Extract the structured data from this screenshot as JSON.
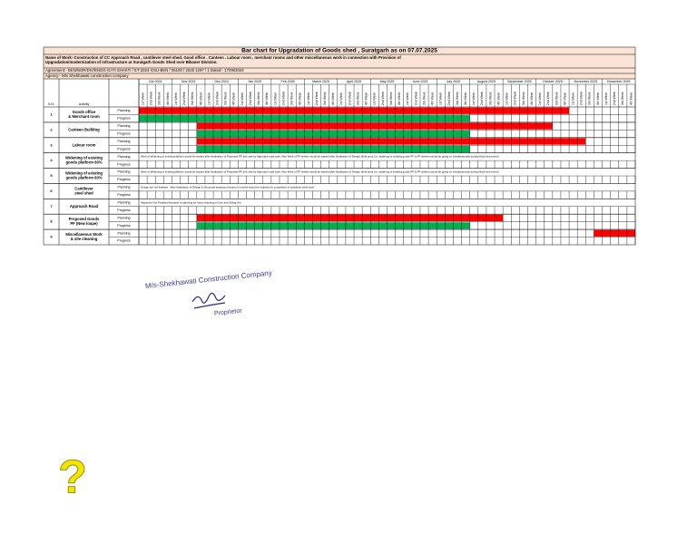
{
  "header": {
    "title": "Bar chart for Upgradation of Goods shed , Suratgarh as on 07.07.2025",
    "name_of_work": "Name of Work:-Construction of CC Approach Road , cantilever steel shed, Good office . Canteen . Labour room , merchant rooms and other miscellaneous work in connection with Provision of Upgradation/modernization of infrastructure at Suratgarh Goods Shed over Bikaner Division.",
    "agreement": "Agreement:- BKN/NOR/DIV/ENGG-GATI SHAKTI / ET-2024-GSU-BKN / 05100 / 2025 1297 / 1    Dated:- 17/09/2024",
    "agency": "Agency:- M/s Shekhawati construction company"
  },
  "table": {
    "sn_header": "S.N.",
    "activity_header": "Activity",
    "months": [
      "Oct 2024",
      "Nov 2024",
      "Dec 2024",
      "Jan 2025",
      "Feb 2025",
      "March 2025",
      "April 2025",
      "May 2025",
      "June 2025",
      "July 2025",
      "August 2025",
      "September 2025",
      "October 2025",
      "November 2025",
      "December 2025"
    ],
    "weeks": [
      "1st Week",
      "2nd Week",
      "3rd Week",
      "4th Week"
    ],
    "planning_label": "Planning",
    "progress_label": "Progress",
    "rows": [
      {
        "sn": "1",
        "activity": "Goods office & Merchant room",
        "plan": {
          "start": 0,
          "end": 51
        },
        "progress": {
          "start": 0,
          "end": 39
        }
      },
      {
        "sn": "2",
        "activity": "Canteen Building",
        "plan": {
          "start": 7,
          "end": 49
        },
        "progress": {
          "start": 7,
          "end": 39
        }
      },
      {
        "sn": "3",
        "activity": "Labour room",
        "plan": {
          "start": 7,
          "end": 53
        },
        "progress": {
          "start": 7,
          "end": 39
        }
      },
      {
        "sn": "4",
        "activity": "Widening of existing goods platform 60%",
        "note": "Work of Widening of existing platform would be started after finalization of Proposed PF and new by Approach road work. Also Work of PF shelter would be started after finalization of Design. Both work (i.e. widening of existing goods PF & PF shelter) would be going on simultaneously during Mock time period"
      },
      {
        "sn": "5",
        "activity": "Widening of existing goods platform 60%",
        "note": "Work of Widening of existing platform would be started after finalization of Proposed PF and new by Approach road work. Also Work of PF shelter would be started after finalization of Design. Both work (i.e. widening of existing goods PF & PF shelter) would be going on simultaneously during Mock time period"
      },
      {
        "sn": "6",
        "activity": "Cantilever steel shed",
        "note": "Design are not finalised . After finalization of Design & Structural drawing minimum 6 months would be required for completion of cantilever steel work"
      },
      {
        "sn": "7",
        "activity": "Approach Road",
        "note": "Alignment Not Finalised because of planning for future thanking of Line and Siding line"
      },
      {
        "sn": "8",
        "activity": "Proposed Goods PF (New loupe)",
        "plan": {
          "start": 7,
          "end": 43
        },
        "progress": {
          "start": 7,
          "end": 39
        }
      },
      {
        "sn": "9",
        "activity": "Miscellaneous Work & site cleaning",
        "plan": {
          "start": 55,
          "end": 59
        }
      }
    ]
  },
  "signature": {
    "company": "M/s-Shekhawati Construction Company",
    "role": "Proprietor"
  },
  "mark": "?"
}
